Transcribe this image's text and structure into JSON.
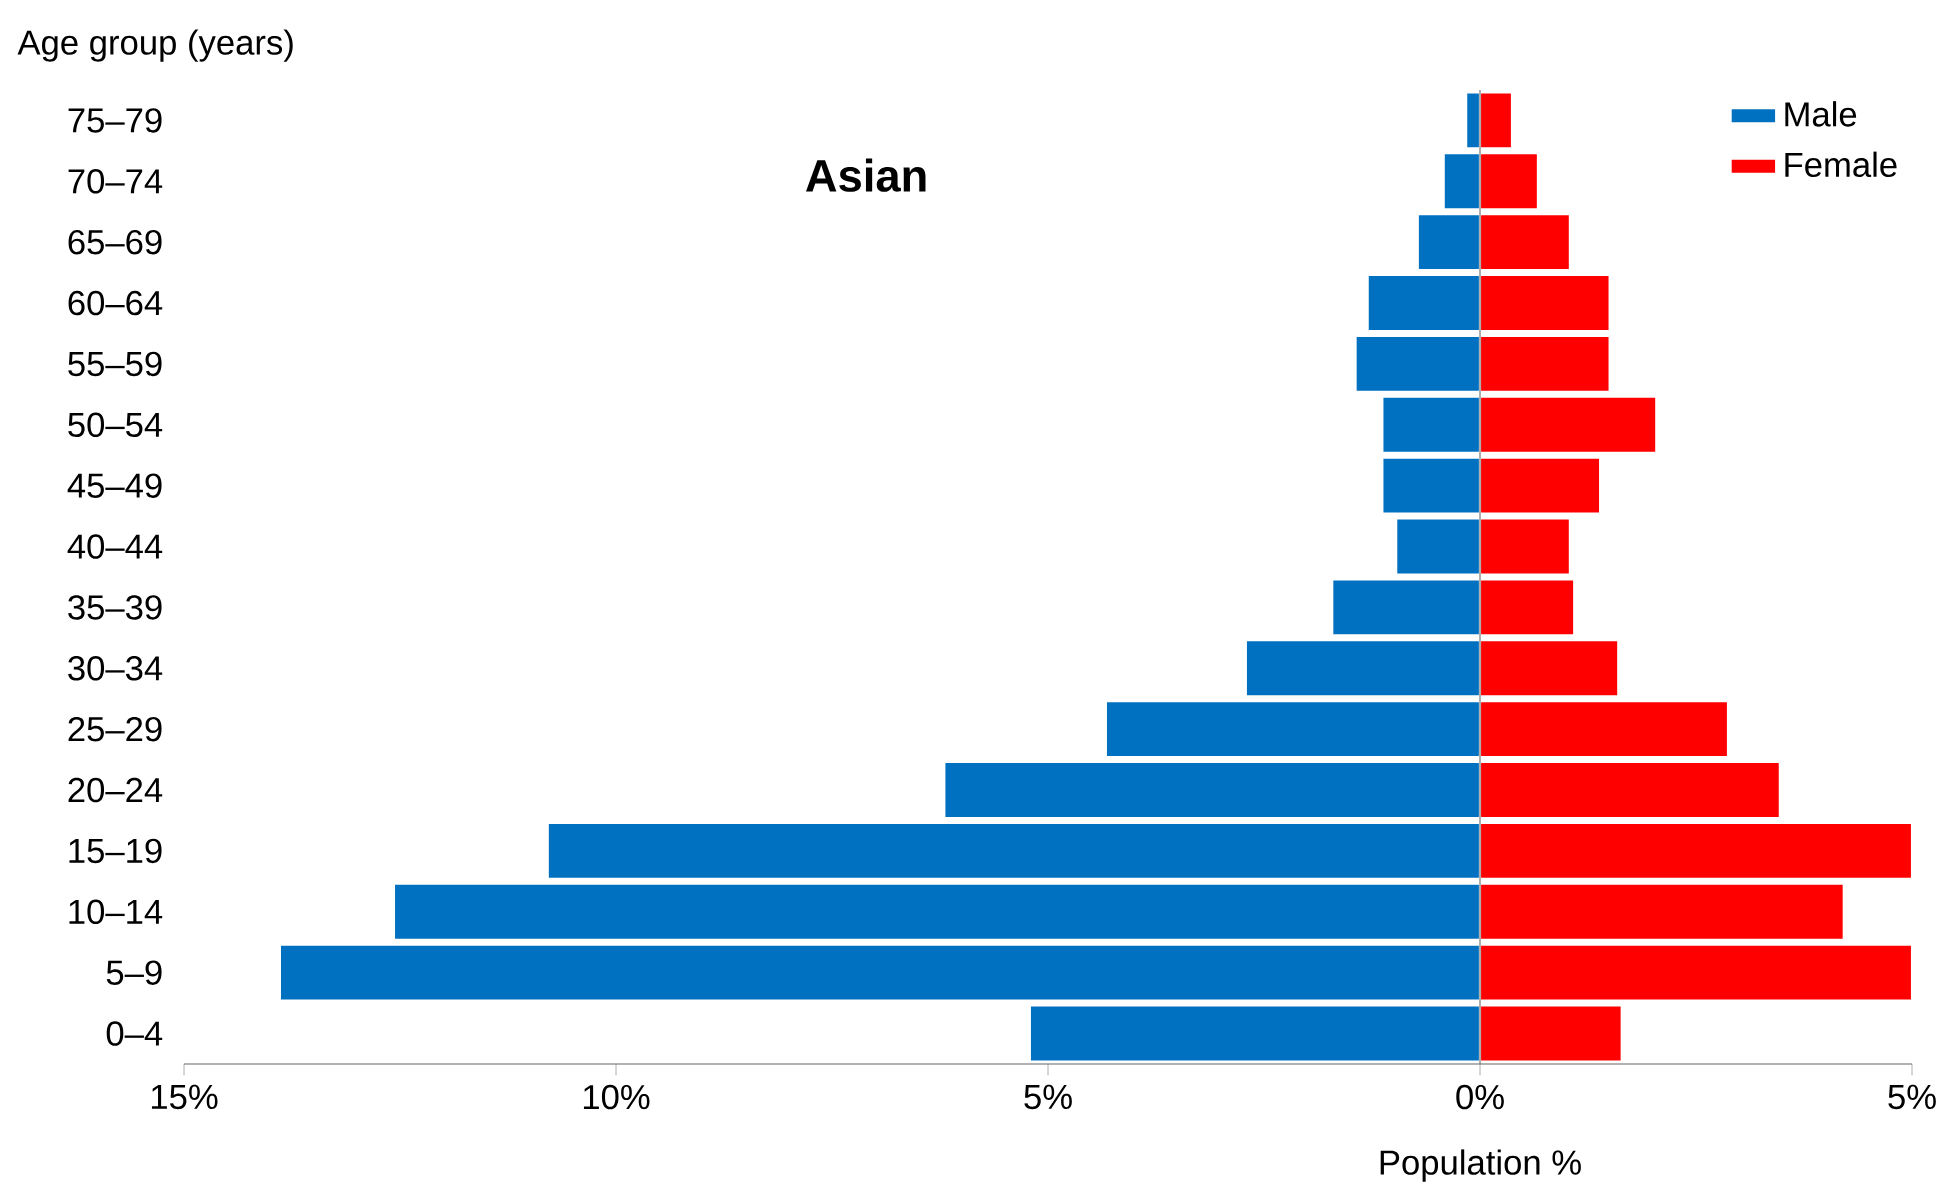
{
  "chart_data": {
    "type": "bar",
    "orientation": "horizontal",
    "title": "Asian",
    "xlabel": "Population %",
    "ylabel": "Age group (years)",
    "categories": [
      "75–79",
      "70–74",
      "65–69",
      "60–64",
      "55–59",
      "50–54",
      "45–49",
      "40–44",
      "35–39",
      "30–34",
      "25–29",
      "20–24",
      "15–19",
      "10–14",
      "5–9",
      "0–4"
    ],
    "series": [
      {
        "name": "Male",
        "color": "#0070c0",
        "values": [
          -0.16,
          -0.42,
          -0.72,
          -1.3,
          -1.44,
          -1.13,
          -1.13,
          -0.97,
          -1.71,
          -2.71,
          -4.33,
          -6.2,
          -10.79,
          -12.57,
          -13.89,
          -5.21
        ]
      },
      {
        "name": "Female",
        "color": "#ff0000",
        "values": [
          0.37,
          0.67,
          1.04,
          1.5,
          1.5,
          2.04,
          1.39,
          1.04,
          1.09,
          1.6,
          2.87,
          3.47,
          5.0,
          4.21,
          5.0,
          1.64
        ]
      }
    ],
    "xlim": [
      -15,
      5
    ],
    "xticks": [
      {
        "value": -15,
        "label": "15%"
      },
      {
        "value": -10,
        "label": "10%"
      },
      {
        "value": -5,
        "label": "5%"
      },
      {
        "value": 0,
        "label": "0%"
      },
      {
        "value": 5,
        "label": "5%"
      }
    ],
    "stacked": true,
    "legend": "top right"
  }
}
